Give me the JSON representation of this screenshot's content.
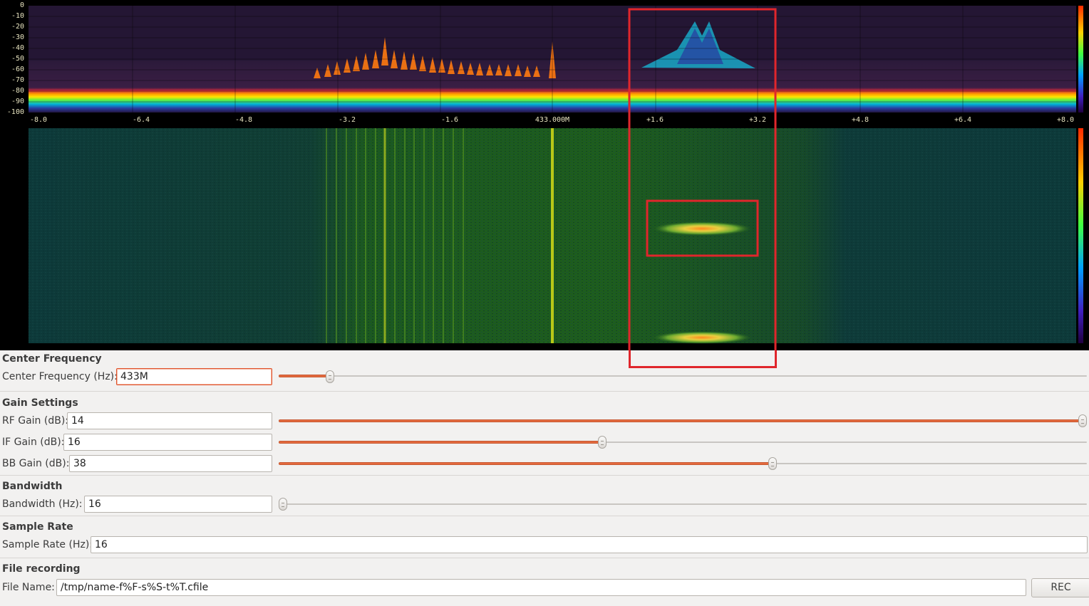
{
  "spectrum": {
    "db_scale": [
      "0",
      "-10",
      "-20",
      "-30",
      "-40",
      "-50",
      "-60",
      "-70",
      "-80",
      "-90",
      "-100"
    ],
    "freq_ticks": [
      "-8.0",
      "-6.4",
      "-4.8",
      "-3.2",
      "-1.6",
      "433.000M",
      "+1.6",
      "+3.2",
      "+4.8",
      "+6.4",
      "+8.0"
    ]
  },
  "colors": {
    "highlight_box": "#e0262c",
    "slider_fill": "#e46a3e",
    "focus_border": "#e0522b"
  },
  "center_frequency": {
    "title": "Center Frequency",
    "label": "Center Frequency (Hz):",
    "value": "433M",
    "slider_fraction": 0.06
  },
  "gain_settings": {
    "title": "Gain Settings",
    "rf": {
      "label": "RF Gain (dB):",
      "value": "14",
      "slider_fraction": 1.0
    },
    "if": {
      "label": "IF Gain (dB):",
      "value": "16",
      "slider_fraction": 0.4
    },
    "bb": {
      "label": "BB Gain (dB):",
      "value": "38",
      "slider_fraction": 0.6
    }
  },
  "bandwidth": {
    "title": "Bandwidth",
    "label": "Bandwidth (Hz):",
    "value": "16",
    "slider_fraction": 0.0
  },
  "sample_rate": {
    "title": "Sample Rate",
    "label": "Sample Rate (Hz):",
    "value": "16"
  },
  "file_recording": {
    "title": "File recording",
    "label": "File Name:",
    "value": "/tmp/name-f%F-s%S-t%T.cfile",
    "button": "REC"
  }
}
